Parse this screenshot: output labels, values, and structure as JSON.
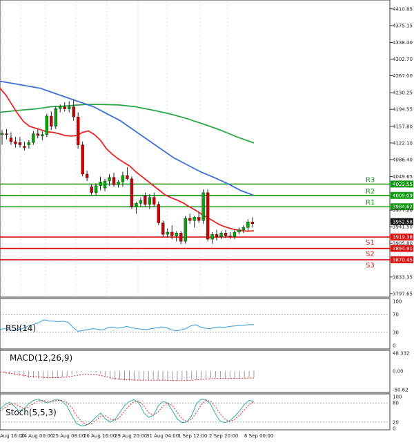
{
  "colors": {
    "up": "#00aa00",
    "down": "#cc0000",
    "wick": "#222222",
    "ma_fast": "#ee2222",
    "ma_mid": "#3d6fd6",
    "ma_slow": "#2aa845",
    "resistance": "#119911",
    "support": "#dd1111",
    "price_badge": "#111111",
    "rsi": "#3399dd",
    "macd": "#999999",
    "macd_signal": "#dd2222",
    "stoch_k": "#33aaaa",
    "stoch_d": "#dd2222",
    "grid": "#dddddd"
  },
  "chart_data": [
    {
      "type": "candlestick",
      "name": "price",
      "ylim": [
        3790,
        4430
      ],
      "yticks": [
        "4410.85",
        "4375.15",
        "4338.40",
        "4302.70",
        "4267.00",
        "4230.25",
        "4194.55",
        "4157.80",
        "4122.10",
        "4086.40",
        "4049.65",
        "3977.20",
        "3941.50",
        "3905.80",
        "3833.35",
        "3797.65"
      ],
      "xticks": [
        "Aug 16:00",
        "24 Aug 00:00",
        "25 Aug 08:00",
        "26 Aug 16:00",
        "29 Aug 20:00",
        "31 Aug 04:00",
        "1 Sep 12:00",
        "2 Sep 20:00",
        "6 Sep 00:00"
      ],
      "candles": [
        {
          "o": 4140,
          "h": 4150,
          "l": 4118,
          "c": 4143
        },
        {
          "o": 4142,
          "h": 4152,
          "l": 4130,
          "c": 4140
        },
        {
          "o": 4133,
          "h": 4145,
          "l": 4118,
          "c": 4125
        },
        {
          "o": 4125,
          "h": 4135,
          "l": 4112,
          "c": 4120
        },
        {
          "o": 4123,
          "h": 4135,
          "l": 4112,
          "c": 4118
        },
        {
          "o": 4115,
          "h": 4125,
          "l": 4106,
          "c": 4112
        },
        {
          "o": 4118,
          "h": 4128,
          "l": 4110,
          "c": 4123
        },
        {
          "o": 4123,
          "h": 4148,
          "l": 4118,
          "c": 4142
        },
        {
          "o": 4142,
          "h": 4152,
          "l": 4132,
          "c": 4138
        },
        {
          "o": 4137,
          "h": 4147,
          "l": 4128,
          "c": 4140
        },
        {
          "o": 4140,
          "h": 4185,
          "l": 4135,
          "c": 4180
        },
        {
          "o": 4180,
          "h": 4190,
          "l": 4150,
          "c": 4158
        },
        {
          "o": 4158,
          "h": 4200,
          "l": 4152,
          "c": 4196
        },
        {
          "o": 4196,
          "h": 4205,
          "l": 4188,
          "c": 4200
        },
        {
          "o": 4200,
          "h": 4210,
          "l": 4190,
          "c": 4195
        },
        {
          "o": 4195,
          "h": 4212,
          "l": 4188,
          "c": 4200
        },
        {
          "o": 4200,
          "h": 4215,
          "l": 4170,
          "c": 4178
        },
        {
          "o": 4178,
          "h": 4188,
          "l": 4110,
          "c": 4118
        },
        {
          "o": 4118,
          "h": 4125,
          "l": 4050,
          "c": 4055
        },
        {
          "o": 4055,
          "h": 4062,
          "l": 4040,
          "c": 4047
        },
        {
          "o": 4028,
          "h": 4033,
          "l": 4010,
          "c": 4015
        },
        {
          "o": 4015,
          "h": 4035,
          "l": 4008,
          "c": 4030
        },
        {
          "o": 4030,
          "h": 4050,
          "l": 4020,
          "c": 4038
        },
        {
          "o": 4025,
          "h": 4045,
          "l": 4018,
          "c": 4040
        },
        {
          "o": 4040,
          "h": 4055,
          "l": 4030,
          "c": 4048
        },
        {
          "o": 4048,
          "h": 4058,
          "l": 4028,
          "c": 4032
        },
        {
          "o": 4032,
          "h": 4042,
          "l": 4026,
          "c": 4038
        },
        {
          "o": 4038,
          "h": 4060,
          "l": 4028,
          "c": 4052
        },
        {
          "o": 4052,
          "h": 4070,
          "l": 4042,
          "c": 4045
        },
        {
          "o": 4045,
          "h": 4050,
          "l": 3980,
          "c": 3985
        },
        {
          "o": 3985,
          "h": 3995,
          "l": 3970,
          "c": 3992
        },
        {
          "o": 3992,
          "h": 4005,
          "l": 3985,
          "c": 3998
        },
        {
          "o": 4008,
          "h": 4015,
          "l": 3985,
          "c": 3990
        },
        {
          "o": 3990,
          "h": 4012,
          "l": 3980,
          "c": 4005
        },
        {
          "o": 4005,
          "h": 4015,
          "l": 3985,
          "c": 3990
        },
        {
          "o": 3990,
          "h": 3996,
          "l": 3945,
          "c": 3950
        },
        {
          "o": 3950,
          "h": 3955,
          "l": 3920,
          "c": 3925
        },
        {
          "o": 3925,
          "h": 3938,
          "l": 3918,
          "c": 3930
        },
        {
          "o": 3930,
          "h": 3945,
          "l": 3915,
          "c": 3922
        },
        {
          "o": 3922,
          "h": 3932,
          "l": 3910,
          "c": 3928
        },
        {
          "o": 3928,
          "h": 3932,
          "l": 3904,
          "c": 3910
        },
        {
          "o": 3910,
          "h": 3965,
          "l": 3905,
          "c": 3960
        },
        {
          "o": 3960,
          "h": 3970,
          "l": 3948,
          "c": 3955
        },
        {
          "o": 3955,
          "h": 3965,
          "l": 3940,
          "c": 3962
        },
        {
          "o": 3962,
          "h": 3972,
          "l": 3950,
          "c": 3955
        },
        {
          "o": 3955,
          "h": 4022,
          "l": 3948,
          "c": 4015
        },
        {
          "o": 4015,
          "h": 4022,
          "l": 3910,
          "c": 3915
        },
        {
          "o": 3915,
          "h": 3930,
          "l": 3905,
          "c": 3925
        },
        {
          "o": 3925,
          "h": 3935,
          "l": 3912,
          "c": 3920
        },
        {
          "o": 3920,
          "h": 3932,
          "l": 3915,
          "c": 3928
        },
        {
          "o": 3928,
          "h": 3935,
          "l": 3918,
          "c": 3922
        },
        {
          "o": 3922,
          "h": 3930,
          "l": 3915,
          "c": 3920
        },
        {
          "o": 3920,
          "h": 3935,
          "l": 3915,
          "c": 3930
        },
        {
          "o": 3930,
          "h": 3940,
          "l": 3925,
          "c": 3935
        },
        {
          "o": 3935,
          "h": 3945,
          "l": 3928,
          "c": 3940
        },
        {
          "o": 3940,
          "h": 3958,
          "l": 3932,
          "c": 3952
        },
        {
          "o": 3952,
          "h": 3962,
          "l": 3940,
          "c": 3948
        }
      ],
      "ma_fast": [
        4240,
        4225,
        4205,
        4185,
        4168,
        4158,
        4154,
        4150,
        4146,
        4145,
        4142,
        4138,
        4137,
        4138,
        4145,
        4148,
        4140,
        4128,
        4110,
        4098,
        4088,
        4080,
        4072,
        4060,
        4050,
        4040,
        4030,
        4020,
        4010,
        4004,
        3999,
        3993,
        3985,
        3978,
        3970,
        3962,
        3955,
        3947,
        3942,
        3938,
        3935,
        3933,
        3932,
        3933
      ],
      "ma_mid": [
        4255,
        4250,
        4245,
        4240,
        4230,
        4220,
        4210,
        4200,
        4185,
        4170,
        4150,
        4130,
        4110,
        4090,
        4075,
        4060,
        4048,
        4035,
        4020,
        4009
      ],
      "ma_slow": [
        4188,
        4192,
        4195,
        4200,
        4202,
        4205,
        4205,
        4204,
        4200,
        4193,
        4185,
        4175,
        4163,
        4150,
        4135,
        4122
      ],
      "levels": [
        {
          "label": "R3",
          "value": "4033.55",
          "role": "resistance"
        },
        {
          "label": "R2",
          "value": "4009.09",
          "role": "resistance"
        },
        {
          "label": "R1",
          "value": "3984.62",
          "role": "resistance"
        },
        {
          "label": "S1",
          "value": "3919.38",
          "role": "support"
        },
        {
          "label": "S2",
          "value": "3894.91",
          "role": "support"
        },
        {
          "label": "S3",
          "value": "3870.45",
          "role": "support"
        }
      ],
      "last_price": "3952.58"
    },
    {
      "type": "line",
      "name": "RSI(14)",
      "ylim": [
        0,
        100
      ],
      "yticks": [
        "100",
        "70",
        "30",
        "0"
      ],
      "values": [
        37,
        38,
        35,
        34,
        36,
        40,
        45,
        48,
        52,
        58,
        56,
        55,
        54,
        55,
        52,
        40,
        32,
        34,
        36,
        38,
        37,
        35,
        40,
        42,
        39,
        41,
        43,
        40,
        38,
        37,
        36,
        38,
        40,
        42,
        41,
        36,
        33,
        35,
        38,
        44,
        47,
        42,
        39,
        38,
        41,
        42,
        41,
        43,
        44,
        45,
        46,
        47,
        47
      ]
    },
    {
      "type": "histogram",
      "name": "MACD(12,26,9)",
      "ylim": [
        -50.62,
        48.332
      ],
      "yticks": [
        "48.332",
        "0.00",
        "-50.62"
      ],
      "histogram": [
        -3,
        -6,
        -9,
        -11,
        -14,
        -16,
        -18,
        -19,
        -20,
        -21,
        -21,
        -20,
        -19,
        -17,
        -14,
        -10,
        -6,
        -3,
        -1,
        -2,
        -4,
        -8,
        -14,
        -20,
        -24,
        -25,
        -26,
        -26,
        -26,
        -25,
        -25,
        -24,
        -23,
        -24,
        -25,
        -26,
        -27,
        -27,
        -26,
        -25,
        -24,
        -23,
        -22,
        -22,
        -20,
        -18,
        -18,
        -20,
        -21,
        -21,
        -20,
        -19,
        -18,
        -17
      ],
      "signal": [
        -2,
        -4,
        -6,
        -8,
        -10,
        -12,
        -14,
        -15,
        -16,
        -17,
        -18,
        -18,
        -18,
        -17,
        -16,
        -14,
        -12,
        -10,
        -9,
        -9,
        -10,
        -12,
        -15,
        -18,
        -20,
        -22,
        -23,
        -24,
        -24,
        -25,
        -25,
        -25,
        -25,
        -25,
        -25,
        -25,
        -26,
        -26,
        -26,
        -26,
        -25,
        -24,
        -23,
        -22,
        -21,
        -20,
        -20,
        -20,
        -20,
        -20,
        -20,
        -19,
        -19,
        -19
      ]
    },
    {
      "type": "line",
      "name": "Stoch(5,5,3)",
      "ylim": [
        0,
        100
      ],
      "yticks": [
        "100",
        "80",
        "20",
        "0"
      ],
      "k": [
        60,
        75,
        82,
        70,
        55,
        62,
        78,
        88,
        92,
        85,
        80,
        88,
        92,
        85,
        70,
        40,
        15,
        8,
        10,
        20,
        35,
        48,
        30,
        20,
        28,
        50,
        72,
        85,
        90,
        80,
        50,
        35,
        40,
        70,
        85,
        80,
        55,
        30,
        18,
        20,
        40,
        78,
        92,
        90,
        75,
        45,
        22,
        18,
        25,
        38,
        55,
        75,
        88,
        85
      ],
      "d": [
        55,
        65,
        75,
        78,
        70,
        62,
        68,
        78,
        86,
        88,
        85,
        85,
        88,
        88,
        82,
        65,
        40,
        22,
        12,
        15,
        25,
        38,
        40,
        30,
        25,
        35,
        55,
        72,
        85,
        86,
        72,
        50,
        42,
        52,
        70,
        80,
        72,
        50,
        30,
        22,
        28,
        50,
        75,
        88,
        85,
        68,
        45,
        28,
        22,
        28,
        42,
        58,
        75,
        84
      ]
    }
  ]
}
